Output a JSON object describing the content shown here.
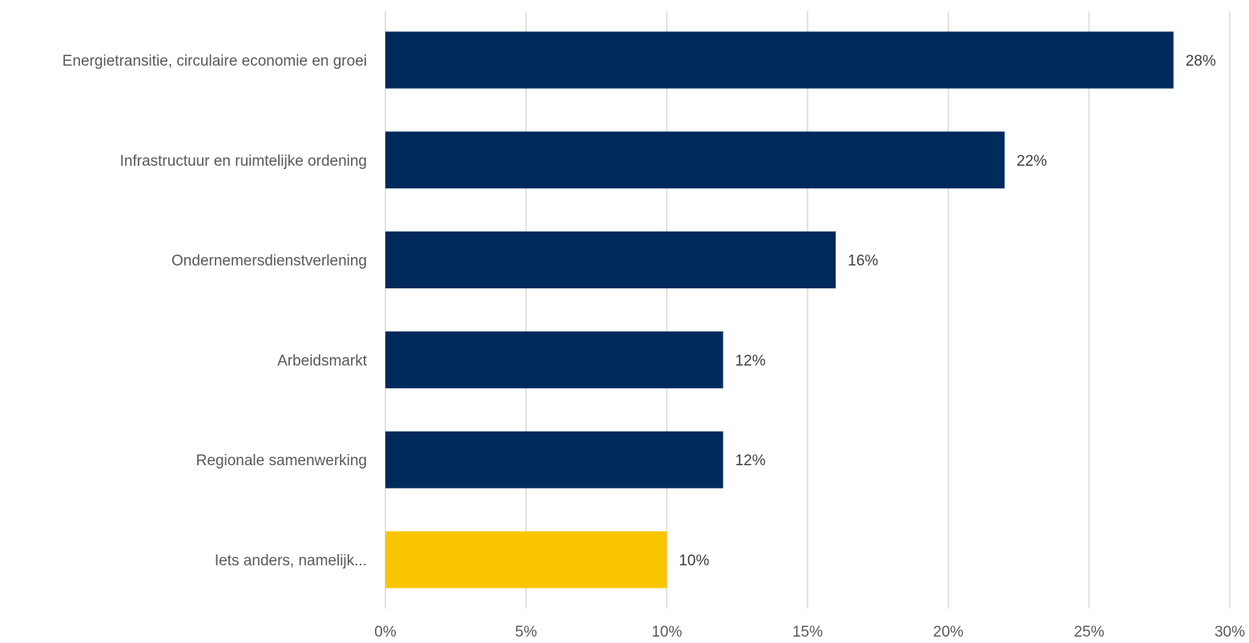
{
  "chart_data": {
    "type": "bar",
    "orientation": "horizontal",
    "categories": [
      "Energietransitie, circulaire economie en groei",
      "Infrastructuur en ruimtelijke ordening",
      "Ondernemersdienstverlening",
      "Arbeidsmarkt",
      "Regionale samenwerking",
      "Iets anders, namelijk..."
    ],
    "values": [
      28,
      22,
      16,
      12,
      12,
      10
    ],
    "value_labels": [
      "28%",
      "22%",
      "16%",
      "12%",
      "12%",
      "10%"
    ],
    "bar_colors": [
      "#002a5c",
      "#002a5c",
      "#002a5c",
      "#002a5c",
      "#002a5c",
      "#f9c500"
    ],
    "xlim": [
      0,
      30
    ],
    "xticks": [
      0,
      5,
      10,
      15,
      20,
      25,
      30
    ],
    "xtick_labels": [
      "0%",
      "5%",
      "10%",
      "15%",
      "20%",
      "25%",
      "30%"
    ],
    "grid": "vertical",
    "title": "",
    "xlabel": "",
    "ylabel": ""
  }
}
